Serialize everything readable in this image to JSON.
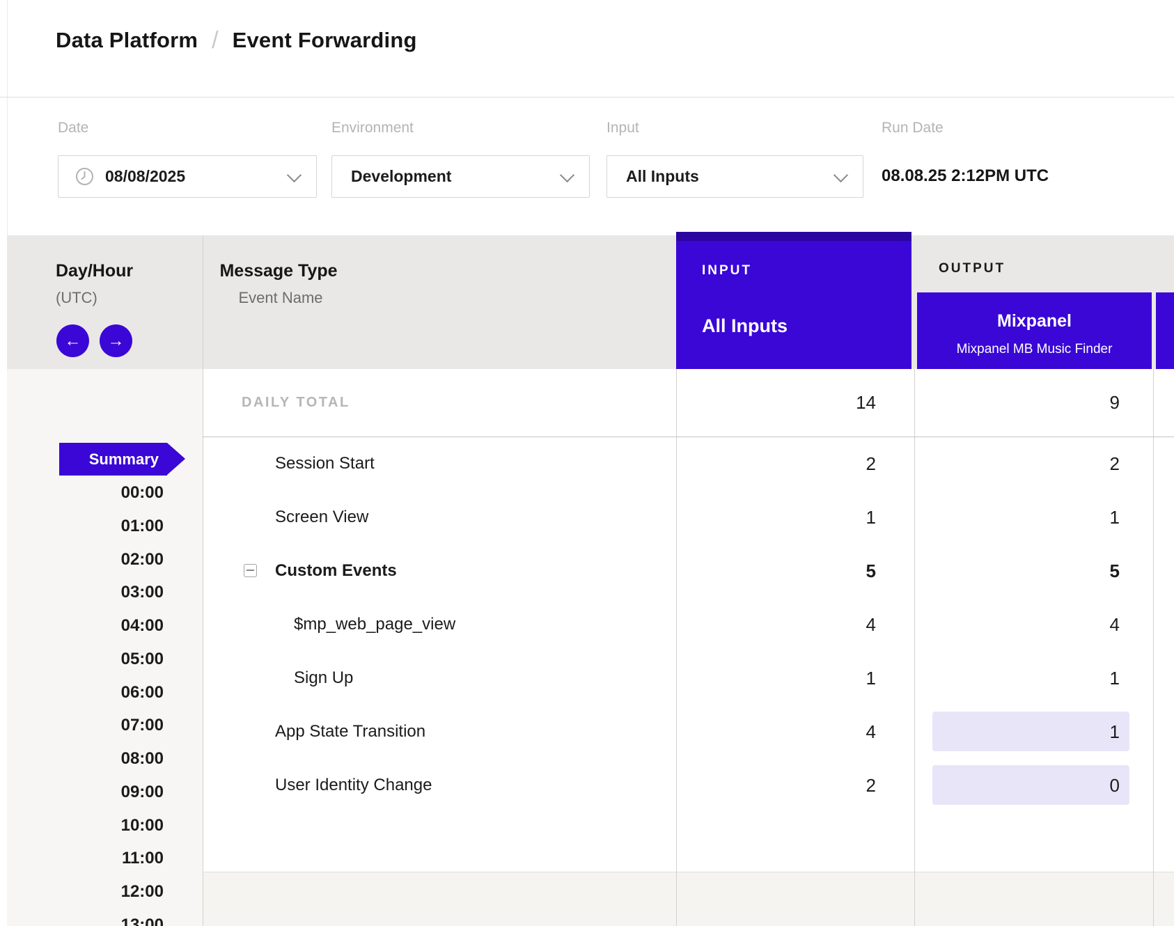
{
  "breadcrumb": {
    "section": "Data Platform",
    "separator": "/",
    "page": "Event Forwarding"
  },
  "filters": {
    "date": {
      "label": "Date",
      "value": "08/08/2025",
      "icon": "clock"
    },
    "environment": {
      "label": "Environment",
      "value": "Development"
    },
    "input": {
      "label": "Input",
      "value": "All Inputs"
    },
    "run_date": {
      "label": "Run Date",
      "value": "08.08.25 2:12PM UTC"
    }
  },
  "grid": {
    "day_hour_header": {
      "title": "Day/Hour",
      "subtitle": "(UTC)"
    },
    "message_type_header": {
      "title": "Message Type",
      "subtitle": "Event Name"
    },
    "input_column": {
      "eyebrow": "INPUT",
      "title": "All Inputs"
    },
    "output_column": {
      "eyebrow": "OUTPUT",
      "title": "Mixpanel",
      "subtitle": "Mixpanel MB Music Finder"
    },
    "daily_total": {
      "label": "DAILY TOTAL",
      "input": "14",
      "output": "9"
    },
    "rows": [
      {
        "name": "Session Start",
        "input": "2",
        "output": "2",
        "indent": 0,
        "bold": false,
        "collapse_icon": false,
        "output_highlighted": false
      },
      {
        "name": "Screen View",
        "input": "1",
        "output": "1",
        "indent": 0,
        "bold": false,
        "collapse_icon": false,
        "output_highlighted": false
      },
      {
        "name": "Custom Events",
        "input": "5",
        "output": "5",
        "indent": 0,
        "bold": true,
        "collapse_icon": true,
        "output_highlighted": false
      },
      {
        "name": "$mp_web_page_view",
        "input": "4",
        "output": "4",
        "indent": 1,
        "bold": false,
        "collapse_icon": false,
        "output_highlighted": false
      },
      {
        "name": "Sign Up",
        "input": "1",
        "output": "1",
        "indent": 1,
        "bold": false,
        "collapse_icon": false,
        "output_highlighted": false
      },
      {
        "name": "App State Transition",
        "input": "4",
        "output": "1",
        "indent": 0,
        "bold": false,
        "collapse_icon": false,
        "output_highlighted": true
      },
      {
        "name": "User Identity Change",
        "input": "2",
        "output": "0",
        "indent": 0,
        "bold": false,
        "collapse_icon": false,
        "output_highlighted": true
      }
    ],
    "sidebar": {
      "summary_label": "Summary",
      "hours": [
        "00:00",
        "01:00",
        "02:00",
        "03:00",
        "04:00",
        "05:00",
        "06:00",
        "07:00",
        "08:00",
        "09:00",
        "10:00",
        "11:00",
        "12:00",
        "13:00"
      ]
    }
  },
  "colors": {
    "accent_purple": "#3a07d6",
    "accent_purple_dark": "#2b05a0",
    "highlight_lavender": "#e9e5f8"
  }
}
